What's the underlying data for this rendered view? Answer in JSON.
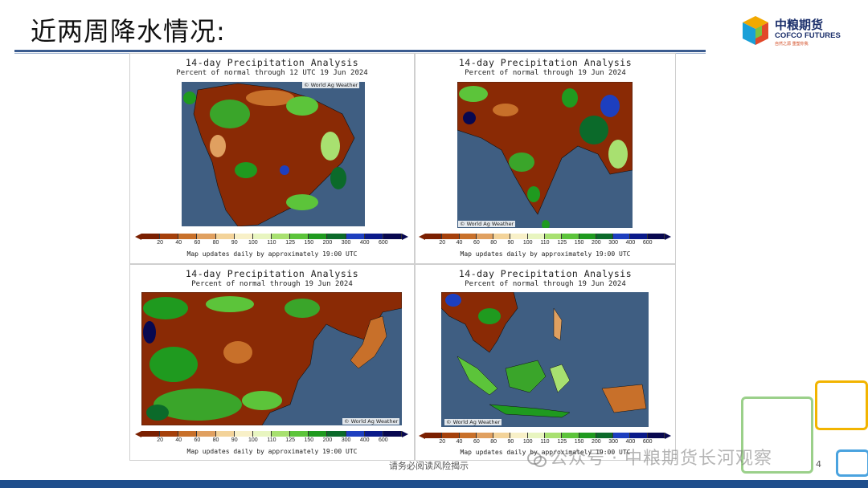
{
  "slide": {
    "title": "近两周降水情况:"
  },
  "logo": {
    "name_cn": "中粮期货",
    "name_en": "COFCO FUTURES",
    "tagline": "自然之源 重塑你我"
  },
  "panels": [
    {
      "title": "14-day Precipitation Analysis",
      "subtitle": "Percent of normal through 12 UTC 19 Jun 2024",
      "credit": "© World Ag Weather",
      "region": "south-america",
      "footnote": "Map updates daily by approximately 19:00 UTC"
    },
    {
      "title": "14-day Precipitation Analysis",
      "subtitle": "Percent of normal through 19 Jun 2024",
      "credit": "© World Ag Weather",
      "region": "south-asia",
      "footnote": "Map updates daily by approximately 19:00 UTC"
    },
    {
      "title": "14-day Precipitation Analysis",
      "subtitle": "Percent of normal through 19 Jun 2024",
      "credit": "© World Ag Weather",
      "region": "east-asia",
      "footnote": "Map updates daily by approximately 19:00 UTC"
    },
    {
      "title": "14-day Precipitation Analysis",
      "subtitle": "Percent of normal through 19 Jun 2024",
      "credit": "© World Ag Weather",
      "region": "southeast-asia",
      "footnote": "Map updates daily by approximately 19:00 UTC"
    }
  ],
  "colorbar": {
    "ticks": [
      "20",
      "40",
      "60",
      "80",
      "90",
      "100",
      "110",
      "125",
      "150",
      "200",
      "300",
      "400",
      "600"
    ],
    "colors": [
      "#7a1f00",
      "#a5400b",
      "#c8702a",
      "#e0a060",
      "#f3d39a",
      "#f8f0c8",
      "#e8f5c0",
      "#a8e070",
      "#5cc43a",
      "#1f9a1f",
      "#0b6a2a",
      "#1d3fbf",
      "#0a1a8a",
      "#080850"
    ]
  },
  "footer": {
    "disclaimer": "请务必阅读风险揭示",
    "page_number": "4",
    "watermark": "公众号 · 中粮期货长河观察"
  }
}
